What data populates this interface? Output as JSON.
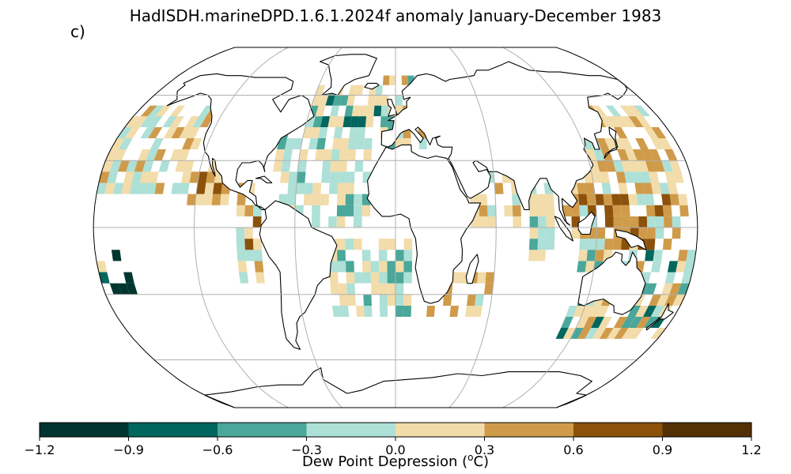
{
  "title": "HadISDH.marineDPD.1.6.1.2024f anomaly January-December 1983",
  "panel_label": "c)",
  "map": {
    "projection": "Robinson",
    "central_longitude": 0,
    "gridlines": {
      "longitudes": [
        -120,
        -60,
        0,
        60,
        120
      ],
      "latitudes": [
        -60,
        -30,
        0,
        30,
        60
      ]
    },
    "land": "white with black coastlines",
    "ocean_missing": "white"
  },
  "colorbar": {
    "label_text": "Dew Point Depression (",
    "label_sup": "o",
    "label_unit": "C)",
    "bounds": [
      -1.2,
      -0.9,
      -0.6,
      -0.3,
      0.0,
      0.3,
      0.6,
      0.9,
      1.2
    ],
    "tick_labels": [
      "−1.2",
      "−0.9",
      "−0.6",
      "−0.3",
      "0.0",
      "0.3",
      "0.6",
      "0.9",
      "1.2"
    ],
    "colors": [
      "#01352f",
      "#01665e",
      "#4aa79a",
      "#ade0d6",
      "#f2dcaa",
      "#cf9b4a",
      "#8c510a",
      "#543005"
    ]
  }
}
